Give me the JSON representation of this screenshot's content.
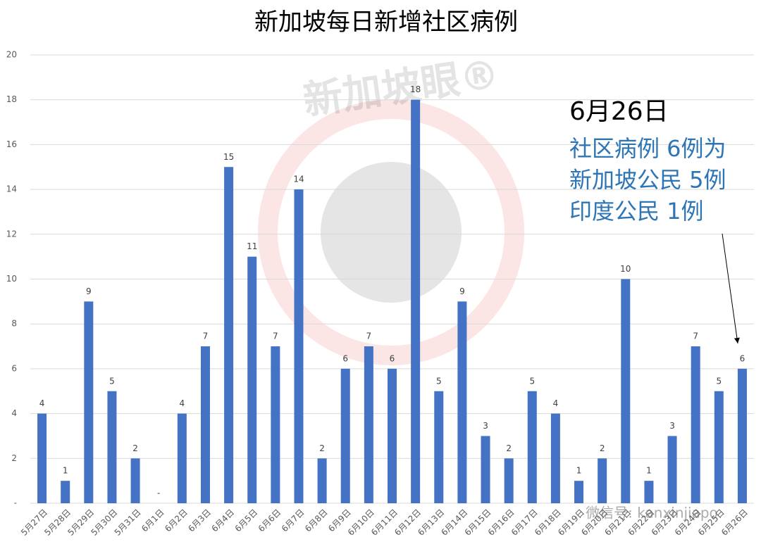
{
  "chart_data": {
    "type": "bar",
    "title": "新加坡每日新增社区病例",
    "categories": [
      "5月27日",
      "5月28日",
      "5月29日",
      "5月30日",
      "5月31日",
      "6月1日",
      "6月2日",
      "6月3日",
      "6月4日",
      "6月5日",
      "6月6日",
      "6月7日",
      "6月8日",
      "6月9日",
      "6月10日",
      "6月11日",
      "6月12日",
      "6月13日",
      "6月14日",
      "6月15日",
      "6月16日",
      "6月17日",
      "6月18日",
      "6月19日",
      "6月20日",
      "6月21日",
      "6月22日",
      "6月23日",
      "6月24日",
      "6月25日",
      "6月26日"
    ],
    "values": [
      4,
      1,
      9,
      5,
      2,
      0,
      4,
      7,
      15,
      11,
      7,
      14,
      2,
      6,
      7,
      6,
      18,
      5,
      9,
      3,
      2,
      5,
      4,
      1,
      2,
      10,
      1,
      3,
      7,
      5,
      6
    ],
    "value_labels": [
      "4",
      "1",
      "9",
      "5",
      "2",
      "-",
      "4",
      "7",
      "15",
      "11",
      "7",
      "14",
      "2",
      "6",
      "7",
      "6",
      "18",
      "5",
      "9",
      "3",
      "2",
      "5",
      "4",
      "1",
      "2",
      "10",
      "1",
      "3",
      "7",
      "5",
      "6"
    ],
    "color": "#4472c4",
    "ylim": [
      0,
      20
    ],
    "yticks": [
      {
        "value": 0,
        "label": "-"
      },
      2,
      4,
      6,
      8,
      10,
      12,
      14,
      16,
      18,
      20
    ],
    "grid": true,
    "annotation": {
      "title": "6月26日",
      "lines": [
        "社区病例 6例为",
        "新加坡公民 5例",
        "印度公民 1例"
      ],
      "color": "#2e75b6"
    },
    "watermarks": [
      "新加坡眼®",
      "微信号: kanxinjiapo"
    ]
  }
}
